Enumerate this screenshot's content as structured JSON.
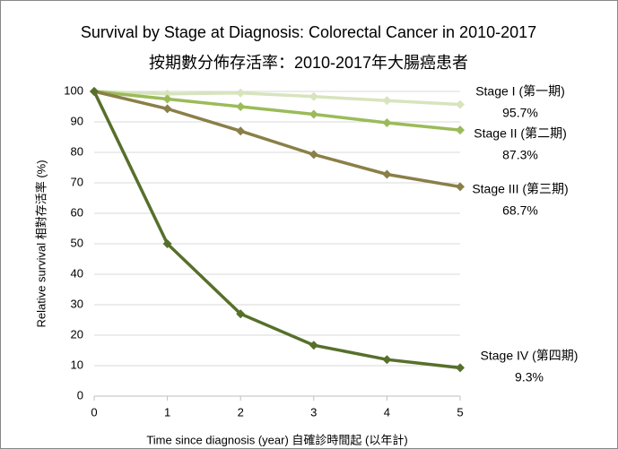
{
  "chart_data": {
    "type": "line",
    "title": "Survival by Stage at Diagnosis: Colorectal Cancer in 2010-2017",
    "subtitle": "按期數分佈存活率：2010-2017年大腸癌患者",
    "x_label": "Time since diagnosis (year) 自確診時間起 (以年計)",
    "y_label": "Relative survival  相對存活率 (%)",
    "x": [
      0,
      1,
      2,
      3,
      4,
      5
    ],
    "xlim": [
      0,
      5
    ],
    "xticks": [
      0,
      1,
      2,
      3,
      4,
      5
    ],
    "ylim": [
      0,
      100
    ],
    "yticks": [
      0,
      10,
      20,
      30,
      40,
      50,
      60,
      70,
      80,
      90,
      100
    ],
    "grid": true,
    "series": [
      {
        "name": "Stage I (第一期)",
        "color": "#d7e4bd",
        "values": [
          100,
          99.2,
          99.5,
          98.3,
          97.0,
          95.7
        ],
        "value_labels": [
          null,
          null,
          null,
          null,
          null,
          "95.7%"
        ]
      },
      {
        "name": "Stage II (第二期)",
        "color": "#9bbb59",
        "values": [
          100,
          97.5,
          95.0,
          92.5,
          89.7,
          87.3
        ],
        "value_labels": [
          null,
          null,
          null,
          null,
          null,
          "87.3%"
        ]
      },
      {
        "name": "Stage III (第三期)",
        "color": "#8a7f48",
        "values": [
          100,
          94.3,
          87.0,
          79.3,
          72.8,
          68.7
        ],
        "value_labels": [
          null,
          null,
          null,
          null,
          null,
          "68.7%"
        ]
      },
      {
        "name": "Stage IV (第四期)",
        "color": "#56702b",
        "values": [
          100,
          50,
          27,
          16.7,
          12,
          9.3
        ],
        "value_labels": [
          null,
          null,
          null,
          null,
          null,
          "9.3%"
        ]
      }
    ]
  }
}
